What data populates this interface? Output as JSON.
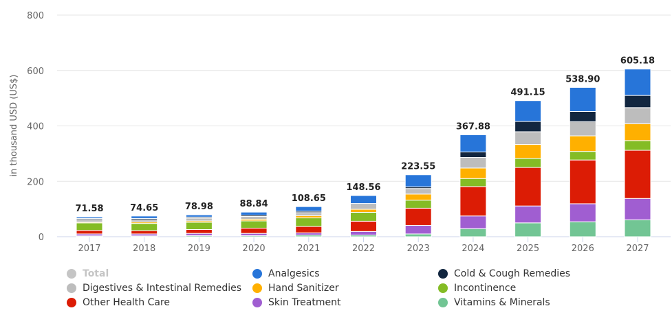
{
  "chart_data": {
    "type": "bar",
    "stacked": true,
    "title": "",
    "xlabel": "",
    "ylabel": "in thousand USD (US$)",
    "ylim": [
      0,
      800
    ],
    "yticks": [
      "0",
      "200",
      "400",
      "600",
      "800"
    ],
    "grid": true,
    "legend_position": "bottom",
    "categories": [
      "2017",
      "2018",
      "2019",
      "2020",
      "2021",
      "2022",
      "2023",
      "2024",
      "2025",
      "2026",
      "2027"
    ],
    "totals": [
      "71.58",
      "74.65",
      "78.98",
      "88.84",
      "108.65",
      "148.56",
      "223.55",
      "367.88",
      "491.15",
      "538.90",
      "605.18"
    ],
    "series": [
      {
        "name": "Vitamins & Minerals",
        "color": "#72c594",
        "values": [
          3,
          3,
          4,
          4,
          6,
          6,
          10,
          29,
          50,
          54,
          61
        ]
      },
      {
        "name": "Skin Treatment",
        "color": "#a05ed1",
        "values": [
          7,
          7,
          8,
          8,
          8,
          13,
          31,
          46,
          61,
          65,
          77
        ]
      },
      {
        "name": "Other Health Care",
        "color": "#dc1c05",
        "values": [
          13,
          12,
          14,
          19,
          23,
          37,
          62,
          106,
          139,
          158,
          174
        ]
      },
      {
        "name": "Incontinence",
        "color": "#84bc25",
        "values": [
          27,
          26,
          26,
          26,
          31,
          32,
          29,
          29,
          33,
          31,
          35
        ]
      },
      {
        "name": "Hand Sanitizer",
        "color": "#ffb000",
        "values": [
          3,
          5,
          5,
          6,
          8,
          11,
          22,
          38,
          50,
          56,
          61
        ]
      },
      {
        "name": "Digestives & Intestinal Remedies",
        "color": "#bdbdbd",
        "values": [
          9,
          8,
          10,
          10,
          11,
          17,
          20,
          38,
          46,
          51,
          58
        ]
      },
      {
        "name": "Cold & Cough Remedies",
        "color": "#12263f",
        "values": [
          4,
          5,
          4,
          5,
          5,
          4,
          6,
          20,
          37,
          37,
          44
        ]
      },
      {
        "name": "Analgesics",
        "color": "#2775d9",
        "values": [
          5.58,
          8.65,
          7.98,
          10.84,
          16.65,
          28.56,
          43.55,
          61.88,
          75.15,
          86.9,
          95.18
        ]
      }
    ],
    "legend": [
      {
        "label": "Total",
        "color": "#c5c5c5",
        "disabled": true
      },
      {
        "label": "Analgesics",
        "color": "#2775d9"
      },
      {
        "label": "Cold & Cough Remedies",
        "color": "#12263f"
      },
      {
        "label": "Digestives & Intestinal Remedies",
        "color": "#bdbdbd"
      },
      {
        "label": "Hand Sanitizer",
        "color": "#ffb000"
      },
      {
        "label": "Incontinence",
        "color": "#84bc25"
      },
      {
        "label": "Other Health Care",
        "color": "#dc1c05"
      },
      {
        "label": "Skin Treatment",
        "color": "#a05ed1"
      },
      {
        "label": "Vitamins & Minerals",
        "color": "#72c594"
      }
    ]
  }
}
